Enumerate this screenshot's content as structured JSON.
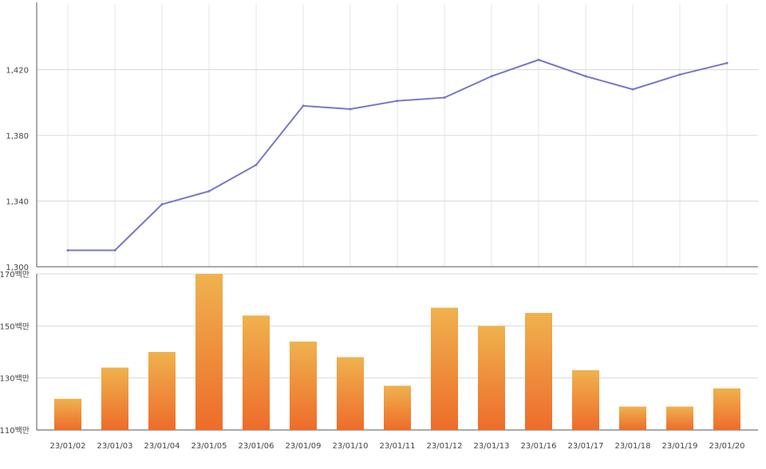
{
  "chart_data": [
    {
      "type": "line",
      "series": [
        {
          "values": [
            1310,
            1310,
            1338,
            1346,
            1362,
            1398,
            1396,
            1401,
            1403,
            1416,
            1426,
            1416,
            1408,
            1417,
            1424
          ]
        }
      ],
      "y_ticks": [
        "1,300",
        "1,340",
        "1,380",
        "1,420"
      ],
      "ylim": [
        1300,
        1460
      ],
      "grid": true,
      "color": "#7777c9"
    },
    {
      "type": "bar",
      "categories": [
        "23/01/02",
        "23/01/03",
        "23/01/04",
        "23/01/05",
        "23/01/06",
        "23/01/09",
        "23/01/10",
        "23/01/11",
        "23/01/12",
        "23/01/13",
        "23/01/16",
        "23/01/17",
        "23/01/18",
        "23/01/19",
        "23/01/20"
      ],
      "series": [
        {
          "values": [
            122,
            134,
            140,
            170,
            154,
            144,
            138,
            127,
            157,
            150,
            155,
            133,
            119,
            119,
            126
          ]
        }
      ],
      "y_ticks": [
        "110백만",
        "130백만",
        "150백만",
        "170백만"
      ],
      "ylim": [
        110,
        170
      ],
      "grid": true,
      "gradient_top": "#efb24e",
      "gradient_bottom": "#ee6c2a"
    }
  ]
}
